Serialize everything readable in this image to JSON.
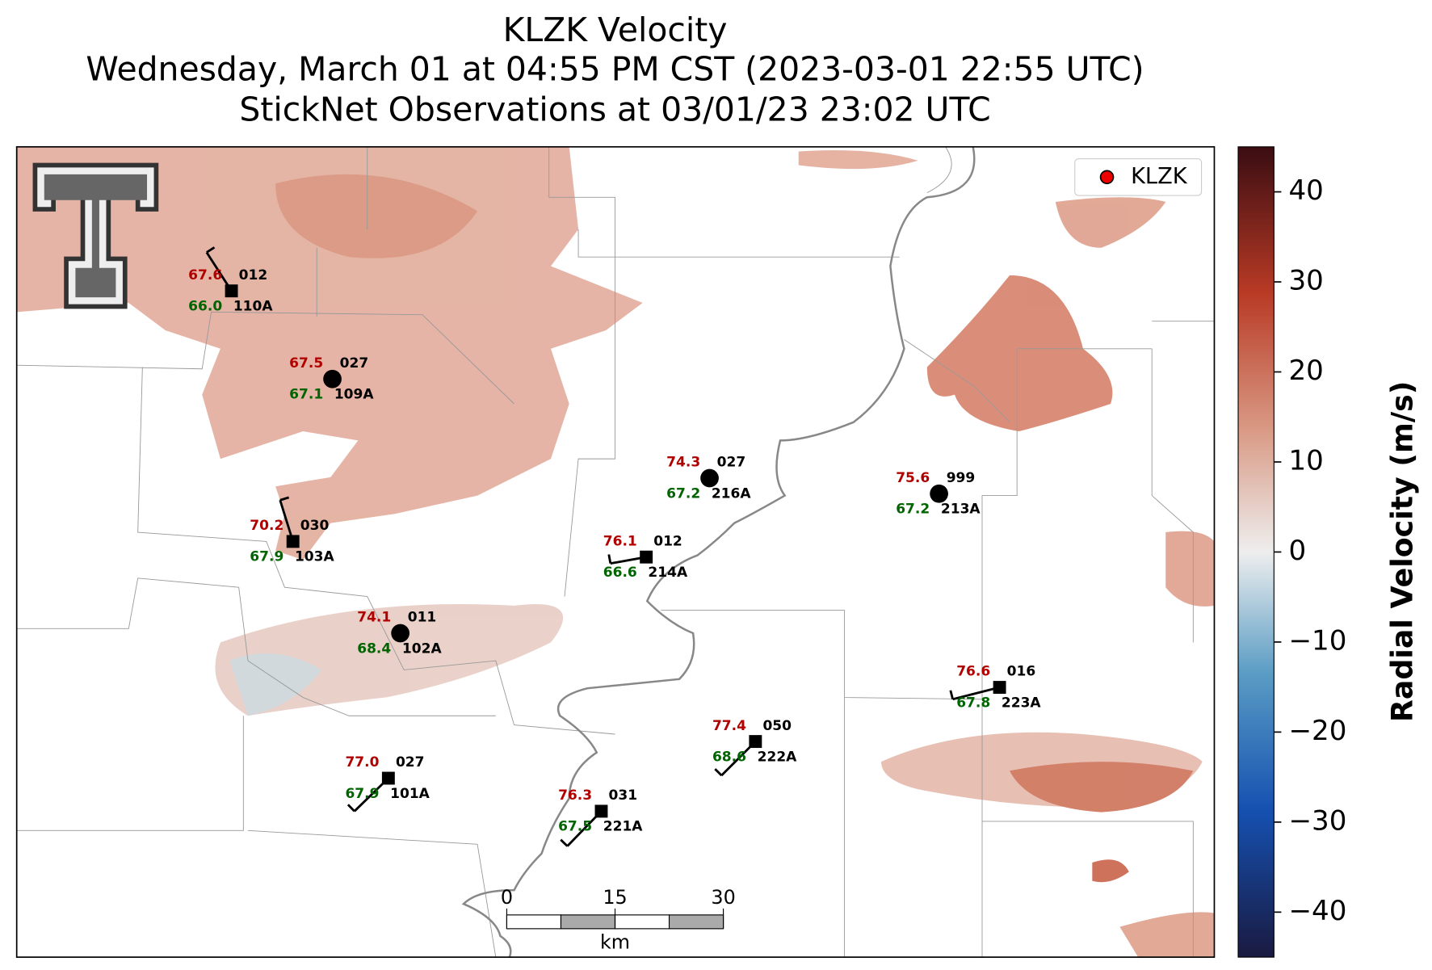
{
  "header": {
    "title": "KLZK Velocity",
    "subtitle": "Wednesday, March 01 at 04:55 PM CST (2023-03-01 22:55 UTC)",
    "observations": "StickNet Observations at 03/01/23 23:02 UTC"
  },
  "legend": {
    "label": "KLZK"
  },
  "scale_bar": {
    "ticks": [
      "0",
      "15",
      "30"
    ],
    "unit": "km"
  },
  "colorbar": {
    "label": "Radial Velocity (m/s)",
    "range": [
      -45,
      45
    ],
    "ticks": [
      {
        "value": -40,
        "label": "−40"
      },
      {
        "value": -30,
        "label": "−30"
      },
      {
        "value": -20,
        "label": "−20"
      },
      {
        "value": -10,
        "label": "−10"
      },
      0,
      10,
      20,
      30,
      40
    ]
  },
  "stations": [
    {
      "id": "110A",
      "temperature": "67.6",
      "dewpoint": "66.0",
      "wind": "012"
    },
    {
      "id": "109A",
      "temperature": "67.5",
      "dewpoint": "67.1",
      "wind": "027"
    },
    {
      "id": "103A",
      "temperature": "70.2",
      "dewpoint": "67.9",
      "wind": "030"
    },
    {
      "id": "102A",
      "temperature": "74.1",
      "dewpoint": "68.4",
      "wind": "011"
    },
    {
      "id": "216A",
      "temperature": "74.3",
      "dewpoint": "67.2",
      "wind": "027"
    },
    {
      "id": "214A",
      "temperature": "76.1",
      "dewpoint": "66.6",
      "wind": "012"
    },
    {
      "id": "213A",
      "temperature": "75.6",
      "dewpoint": "67.2",
      "wind": "999"
    },
    {
      "id": "223A",
      "temperature": "76.6",
      "dewpoint": "67.8",
      "wind": "016"
    },
    {
      "id": "222A",
      "temperature": "77.4",
      "dewpoint": "68.6",
      "wind": "050"
    },
    {
      "id": "101A",
      "temperature": "77.0",
      "dewpoint": "67.9",
      "wind": "027"
    },
    {
      "id": "221A",
      "temperature": "76.3",
      "dewpoint": "67.5",
      "wind": "031"
    }
  ]
}
